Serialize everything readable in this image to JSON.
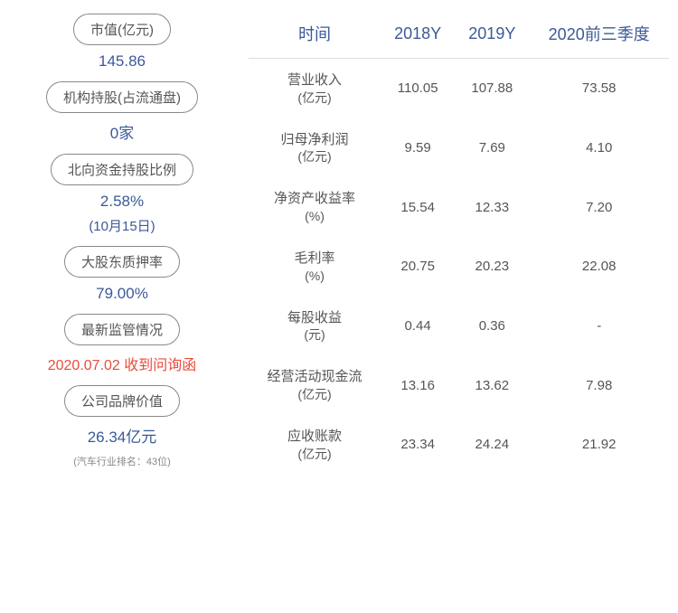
{
  "left_metrics": [
    {
      "label": "市值(亿元)",
      "value": "145.86",
      "type": "blue"
    },
    {
      "label": "机构持股(占流通盘)",
      "value": "0家",
      "type": "blue"
    },
    {
      "label": "北向资金持股比例",
      "value": "2.58%",
      "type": "blue",
      "note": "(10月15日)"
    },
    {
      "label": "大股东质押率",
      "value": "79.00%",
      "type": "blue"
    },
    {
      "label": "最新监管情况",
      "value": "2020.07.02 收到问询函",
      "type": "red"
    },
    {
      "label": "公司品牌价值",
      "value": "26.34亿元",
      "type": "blue",
      "subnote": "(汽车行业排名：43位)"
    }
  ],
  "table": {
    "headers": [
      "时间",
      "2018Y",
      "2019Y",
      "2020前三季度"
    ],
    "rows": [
      {
        "metric": "营业收入",
        "unit": "(亿元)",
        "values": [
          "110.05",
          "107.88",
          "73.58"
        ]
      },
      {
        "metric": "归母净利润",
        "unit": "(亿元)",
        "values": [
          "9.59",
          "7.69",
          "4.10"
        ]
      },
      {
        "metric": "净资产收益率",
        "unit": "(%)",
        "values": [
          "15.54",
          "12.33",
          "7.20"
        ]
      },
      {
        "metric": "毛利率",
        "unit": "(%)",
        "values": [
          "20.75",
          "20.23",
          "22.08"
        ]
      },
      {
        "metric": "每股收益",
        "unit": "(元)",
        "values": [
          "0.44",
          "0.36",
          "-"
        ]
      },
      {
        "metric": "经营活动现金流",
        "unit": "(亿元)",
        "values": [
          "13.16",
          "13.62",
          "7.98"
        ]
      },
      {
        "metric": "应收账款",
        "unit": "(亿元)",
        "values": [
          "23.34",
          "24.24",
          "21.92"
        ]
      }
    ]
  },
  "colors": {
    "blue": "#3b5998",
    "red": "#e74c3c",
    "gray_text": "#555555",
    "light_gray": "#888888",
    "border": "#dddddd",
    "background": "#ffffff"
  }
}
